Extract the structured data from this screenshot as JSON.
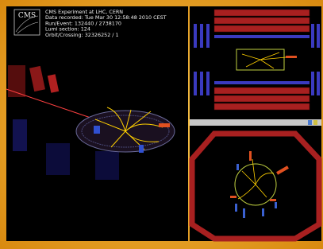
{
  "logo": "CMS",
  "info": {
    "lines": [
      "CMS Experiment at LHC, CERN",
      "Data recorded: Tue Mar 30 12:58:48 2010 CEST",
      "Run/Event: 132440 / 2738170",
      "Lumi section: 124",
      "Orbit/Crossing: 32326252 / 1"
    ]
  }
}
